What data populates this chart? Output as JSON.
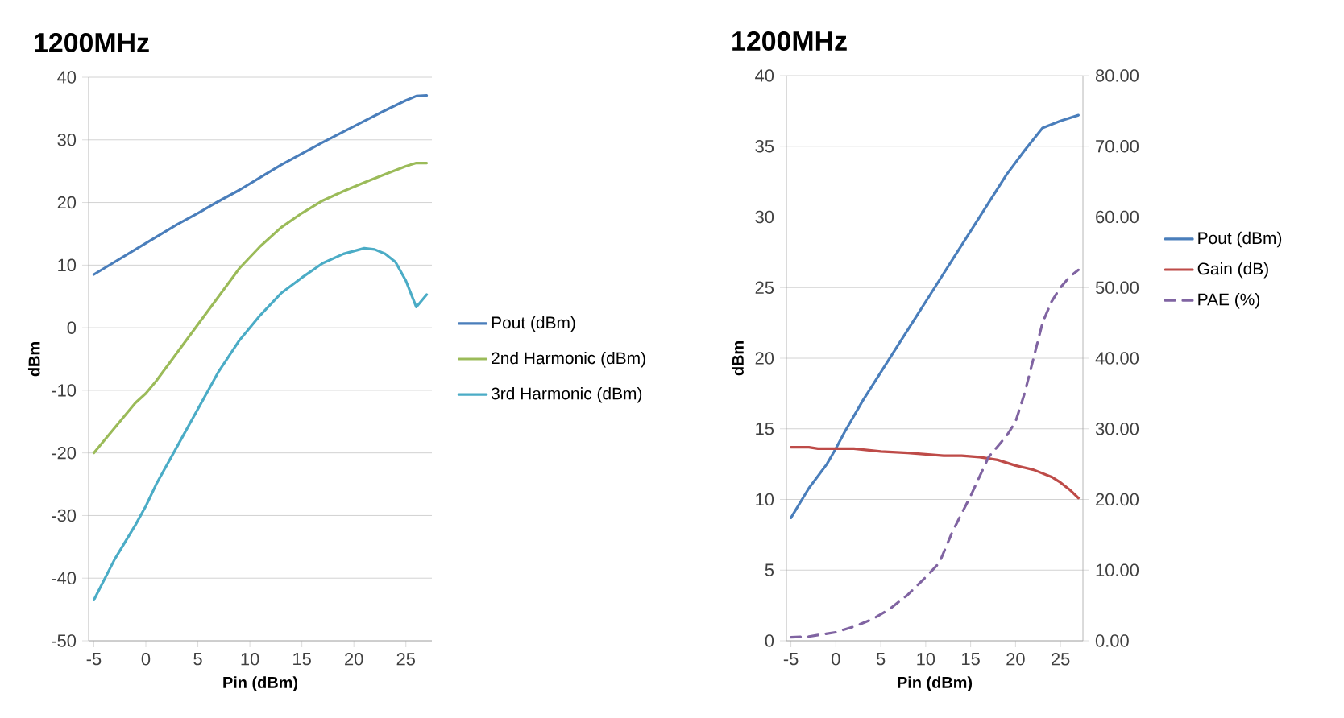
{
  "chart_data": [
    {
      "type": "line",
      "title": "1200MHz",
      "xlabel": "Pin (dBm)",
      "ylabel": "dBm",
      "xlim": [
        -5.5,
        27.5
      ],
      "xticks": [
        -5,
        0,
        5,
        10,
        15,
        20,
        25
      ],
      "ylim": [
        -50,
        40
      ],
      "yticks": [
        -50,
        -40,
        -30,
        -20,
        -10,
        0,
        10,
        20,
        30,
        40
      ],
      "grid": "y",
      "legend": "right",
      "marker": "none",
      "series": [
        {
          "name": "Pout (dBm)",
          "color": "#4a7ebb",
          "x": [
            -5,
            -3,
            -1,
            1,
            3,
            5,
            7,
            9,
            11,
            13,
            15,
            17,
            19,
            21,
            23,
            25,
            26,
            27
          ],
          "values": [
            8.5,
            10.5,
            12.5,
            14.5,
            16.5,
            18.3,
            20.2,
            22,
            24,
            26,
            27.8,
            29.6,
            31.3,
            33,
            34.7,
            36.3,
            37,
            37.1
          ]
        },
        {
          "name": "2nd Harmonic (dBm)",
          "color": "#9bbb59",
          "x": [
            -5,
            -3,
            -1,
            0,
            1,
            3,
            5,
            7,
            9,
            11,
            13,
            15,
            17,
            19,
            21,
            23,
            25,
            26,
            27
          ],
          "values": [
            -20,
            -16,
            -12,
            -10.5,
            -8.5,
            -4,
            0.5,
            5,
            9.5,
            13,
            16,
            18.3,
            20.3,
            21.8,
            23.2,
            24.5,
            25.8,
            26.3,
            26.3
          ]
        },
        {
          "name": "3rd Harmonic (dBm)",
          "color": "#4bacc6",
          "x": [
            -5,
            -3,
            -1,
            0,
            1,
            3,
            5,
            7,
            9,
            11,
            13,
            15,
            17,
            19,
            21,
            22,
            23,
            24,
            25,
            26,
            27
          ],
          "values": [
            -43.5,
            -37,
            -31.5,
            -28.5,
            -25,
            -19,
            -13,
            -7,
            -2,
            2,
            5.5,
            8,
            10.3,
            11.8,
            12.7,
            12.5,
            11.8,
            10.5,
            7.5,
            3.3,
            5.3
          ]
        }
      ]
    },
    {
      "type": "line",
      "title": "1200MHz",
      "xlabel": "Pin (dBm)",
      "ylabel": "dBm",
      "xlim": [
        -5.5,
        27.5
      ],
      "xticks": [
        -5,
        0,
        5,
        10,
        15,
        20,
        25
      ],
      "ylim": [
        0,
        40
      ],
      "yticks": [
        0,
        5,
        10,
        15,
        20,
        25,
        30,
        35,
        40
      ],
      "y2lim": [
        0,
        80
      ],
      "y2ticks": [
        {
          "value": 0,
          "label": "0.00"
        },
        {
          "value": 10,
          "label": "10.00"
        },
        {
          "value": 20,
          "label": "20.00"
        },
        {
          "value": 30,
          "label": "30.00"
        },
        {
          "value": 40,
          "label": "40.00"
        },
        {
          "value": 50,
          "label": "50.00"
        },
        {
          "value": 60,
          "label": "60.00"
        },
        {
          "value": 70,
          "label": "70.00"
        },
        {
          "value": 80,
          "label": "80.00"
        }
      ],
      "grid": "y",
      "legend": "right",
      "marker": "none",
      "series": [
        {
          "name": "Pout (dBm)",
          "color": "#4a7ebb",
          "x": [
            -5,
            -3,
            -1,
            0,
            1,
            3,
            5,
            7,
            9,
            11,
            13,
            15,
            17,
            19,
            21,
            23,
            25,
            27
          ],
          "values": [
            8.7,
            10.8,
            12.5,
            13.6,
            14.8,
            17,
            19,
            21,
            23,
            25,
            27,
            29,
            31,
            33,
            34.7,
            36.3,
            36.8,
            37.2
          ]
        },
        {
          "name": "Gain (dB)",
          "color": "#be4b48",
          "x": [
            -5,
            -3,
            -2,
            0,
            2,
            5,
            8,
            10,
            12,
            14,
            16,
            18,
            20,
            22,
            24,
            25,
            26,
            27
          ],
          "values": [
            13.7,
            13.7,
            13.6,
            13.6,
            13.6,
            13.4,
            13.3,
            13.2,
            13.1,
            13.1,
            13,
            12.8,
            12.4,
            12.1,
            11.6,
            11.2,
            10.7,
            10.1
          ]
        },
        {
          "name": "PAE (%)",
          "color": "#8064a2",
          "axis": "y2",
          "line_style": "dashed",
          "x": [
            -5,
            -3,
            0,
            2,
            4,
            6,
            8,
            10,
            11.5,
            13,
            15,
            17,
            19,
            20,
            21,
            22,
            23,
            24,
            25,
            26,
            27
          ],
          "values": [
            0.5,
            0.6,
            1.2,
            2,
            3,
            4.5,
            6.5,
            9,
            11,
            15.5,
            20.5,
            26,
            29,
            31,
            35,
            40,
            45,
            48,
            50,
            51.5,
            52.5
          ]
        }
      ]
    }
  ]
}
